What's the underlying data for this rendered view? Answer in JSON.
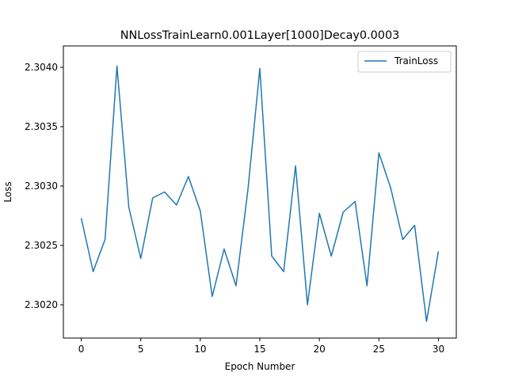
{
  "chart_data": {
    "type": "line",
    "title": "NNLossTrainLearn0.001Layer[1000]Decay0.0003",
    "xlabel": "Epoch Number",
    "ylabel": "Loss",
    "xlim": [
      -1.5,
      31.5
    ],
    "ylim": [
      2.30172,
      2.30418
    ],
    "xticks": [
      0,
      5,
      10,
      15,
      20,
      25,
      30
    ],
    "xtick_labels": [
      "0",
      "5",
      "10",
      "15",
      "20",
      "25",
      "30"
    ],
    "yticks": [
      2.302,
      2.3025,
      2.303,
      2.3035,
      2.304
    ],
    "ytick_labels": [
      "2.3020",
      "2.3025",
      "2.3030",
      "2.3035",
      "2.3040"
    ],
    "grid": false,
    "legend": {
      "position": "top-right"
    },
    "series": [
      {
        "name": "TrainLoss",
        "color": "#1f77b4",
        "x": [
          0,
          1,
          2,
          3,
          4,
          5,
          6,
          7,
          8,
          9,
          10,
          11,
          12,
          13,
          14,
          15,
          16,
          17,
          18,
          19,
          20,
          21,
          22,
          23,
          24,
          25,
          26,
          27,
          28,
          29,
          30
        ],
        "y": [
          2.30273,
          2.30228,
          2.30255,
          2.30401,
          2.30282,
          2.30239,
          2.3029,
          2.30295,
          2.30284,
          2.30308,
          2.30279,
          2.30207,
          2.30247,
          2.30216,
          2.30297,
          2.30399,
          2.30241,
          2.30228,
          2.30317,
          2.302,
          2.30277,
          2.30241,
          2.30278,
          2.30287,
          2.30216,
          2.30328,
          2.30298,
          2.30255,
          2.30267,
          2.30186,
          2.30245
        ]
      }
    ]
  }
}
